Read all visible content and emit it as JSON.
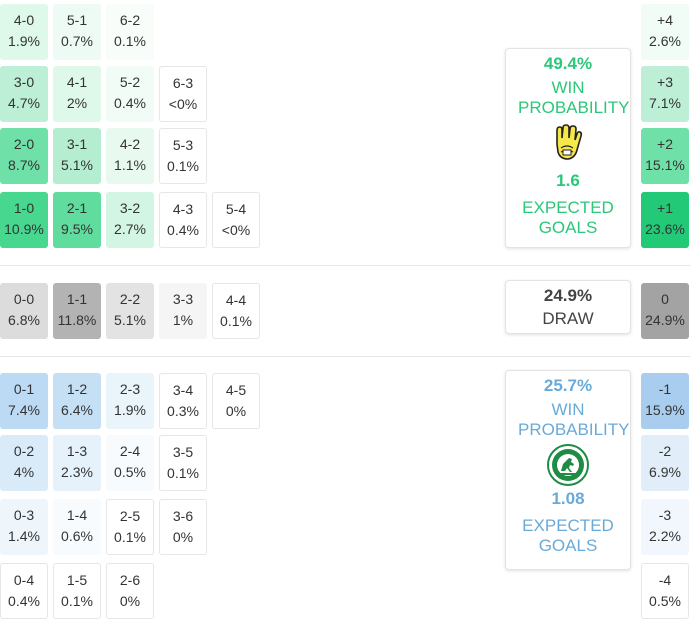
{
  "home": {
    "scores": [
      {
        "score": "4-0",
        "prob": "1.9%",
        "bg": "#def8ea"
      },
      {
        "score": "5-1",
        "prob": "0.7%",
        "bg": "#eefbf4"
      },
      {
        "score": "6-2",
        "prob": "0.1%",
        "bg": "#f8fdfa"
      },
      {
        "score": "3-0",
        "prob": "4.7%",
        "bg": "#bcefd5"
      },
      {
        "score": "4-1",
        "prob": "2%",
        "bg": "#def8ea"
      },
      {
        "score": "5-2",
        "prob": "0.4%",
        "bg": "#f2fcf7"
      },
      {
        "score": "6-3",
        "prob": "<0%",
        "bg": "#ffffff"
      },
      {
        "score": "2-0",
        "prob": "8.7%",
        "bg": "#6fe0a8"
      },
      {
        "score": "3-1",
        "prob": "5.1%",
        "bg": "#b4edd0"
      },
      {
        "score": "4-2",
        "prob": "1.1%",
        "bg": "#e8faf0"
      },
      {
        "score": "5-3",
        "prob": "0.1%",
        "bg": "#ffffff"
      },
      {
        "score": "1-0",
        "prob": "10.9%",
        "bg": "#47d78f"
      },
      {
        "score": "2-1",
        "prob": "9.5%",
        "bg": "#5fdc9e"
      },
      {
        "score": "3-2",
        "prob": "2.7%",
        "bg": "#d3f5e3"
      },
      {
        "score": "4-3",
        "prob": "0.4%",
        "bg": "#ffffff"
      },
      {
        "score": "5-4",
        "prob": "<0%",
        "bg": "#ffffff"
      }
    ],
    "margins": [
      {
        "label": "+4",
        "prob": "2.6%",
        "bg": "#f0fcf5"
      },
      {
        "label": "+3",
        "prob": "7.1%",
        "bg": "#bcefd5"
      },
      {
        "label": "+2",
        "prob": "15.1%",
        "bg": "#6fe0a8"
      },
      {
        "label": "+1",
        "prob": "23.6%",
        "bg": "#22c977"
      }
    ],
    "win_pct": "49.4%",
    "win_label": "WIN PROBABILITY",
    "xg": "1.6",
    "xg_label": "EXPECTED GOALS",
    "crest_icon": "yellow-glove-crest-icon"
  },
  "draw": {
    "scores": [
      {
        "score": "0-0",
        "prob": "6.8%",
        "bg": "#dcdcdc"
      },
      {
        "score": "1-1",
        "prob": "11.8%",
        "bg": "#b3b3b3"
      },
      {
        "score": "2-2",
        "prob": "5.1%",
        "bg": "#e3e3e3"
      },
      {
        "score": "3-3",
        "prob": "1%",
        "bg": "#f5f5f5"
      },
      {
        "score": "4-4",
        "prob": "0.1%",
        "bg": "#ffffff"
      }
    ],
    "margin": {
      "label": "0",
      "prob": "24.9%",
      "bg": "#a3a3a3"
    },
    "pct": "24.9%",
    "label": "DRAW"
  },
  "away": {
    "scores": [
      {
        "score": "0-1",
        "prob": "7.4%",
        "bg": "#bcdaf3"
      },
      {
        "score": "1-2",
        "prob": "6.4%",
        "bg": "#c5e0f5"
      },
      {
        "score": "2-3",
        "prob": "1.9%",
        "bg": "#eaf4fb"
      },
      {
        "score": "3-4",
        "prob": "0.3%",
        "bg": "#ffffff"
      },
      {
        "score": "4-5",
        "prob": "0%",
        "bg": "#ffffff"
      },
      {
        "score": "0-2",
        "prob": "4%",
        "bg": "#d9eaf8"
      },
      {
        "score": "1-3",
        "prob": "2.3%",
        "bg": "#e6f2fb"
      },
      {
        "score": "2-4",
        "prob": "0.5%",
        "bg": "#f8fbfe"
      },
      {
        "score": "3-5",
        "prob": "0.1%",
        "bg": "#ffffff"
      },
      {
        "score": "0-3",
        "prob": "1.4%",
        "bg": "#eef6fc"
      },
      {
        "score": "1-4",
        "prob": "0.6%",
        "bg": "#f8fbfe"
      },
      {
        "score": "2-5",
        "prob": "0.1%",
        "bg": "#ffffff"
      },
      {
        "score": "3-6",
        "prob": "0%",
        "bg": "#ffffff"
      },
      {
        "score": "0-4",
        "prob": "0.4%",
        "bg": "#ffffff"
      },
      {
        "score": "1-5",
        "prob": "0.1%",
        "bg": "#ffffff"
      },
      {
        "score": "2-6",
        "prob": "0%",
        "bg": "#ffffff"
      }
    ],
    "margins": [
      {
        "label": "-1",
        "prob": "15.9%",
        "bg": "#a9cdee"
      },
      {
        "label": "-2",
        "prob": "6.9%",
        "bg": "#e1eef9"
      },
      {
        "label": "-3",
        "prob": "2.2%",
        "bg": "#f1f7fd"
      },
      {
        "label": "-4",
        "prob": "0.5%",
        "bg": "#ffffff"
      }
    ],
    "win_pct": "25.7%",
    "win_label": "WIN PROBABILITY",
    "xg": "1.08",
    "xg_label": "EXPECTED GOALS",
    "crest_icon": "green-horse-crest-icon"
  },
  "colors": {
    "home_accent": "#2bc77a",
    "away_accent": "#6aaad8",
    "draw_accent": "#444444"
  }
}
